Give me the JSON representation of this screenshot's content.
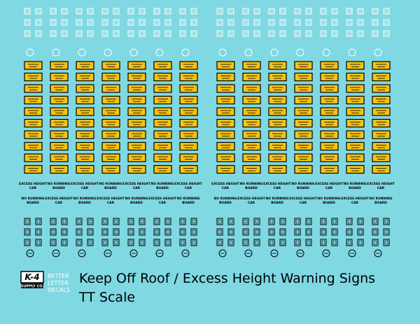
{
  "logo": {
    "mark": "K-4",
    "subtitle": "SUPPLY CO."
  },
  "brand": [
    "BETTER",
    "LETTER",
    "DECALS"
  ],
  "title": "Keep Off Roof / Excess Height Warning Signs",
  "subtitle": "TT Scale",
  "decals": {
    "excess_height": [
      "EXCESS HEIGHT",
      "CAR"
    ],
    "no_running_board": [
      "NO RUNNING",
      "BOARD"
    ]
  }
}
